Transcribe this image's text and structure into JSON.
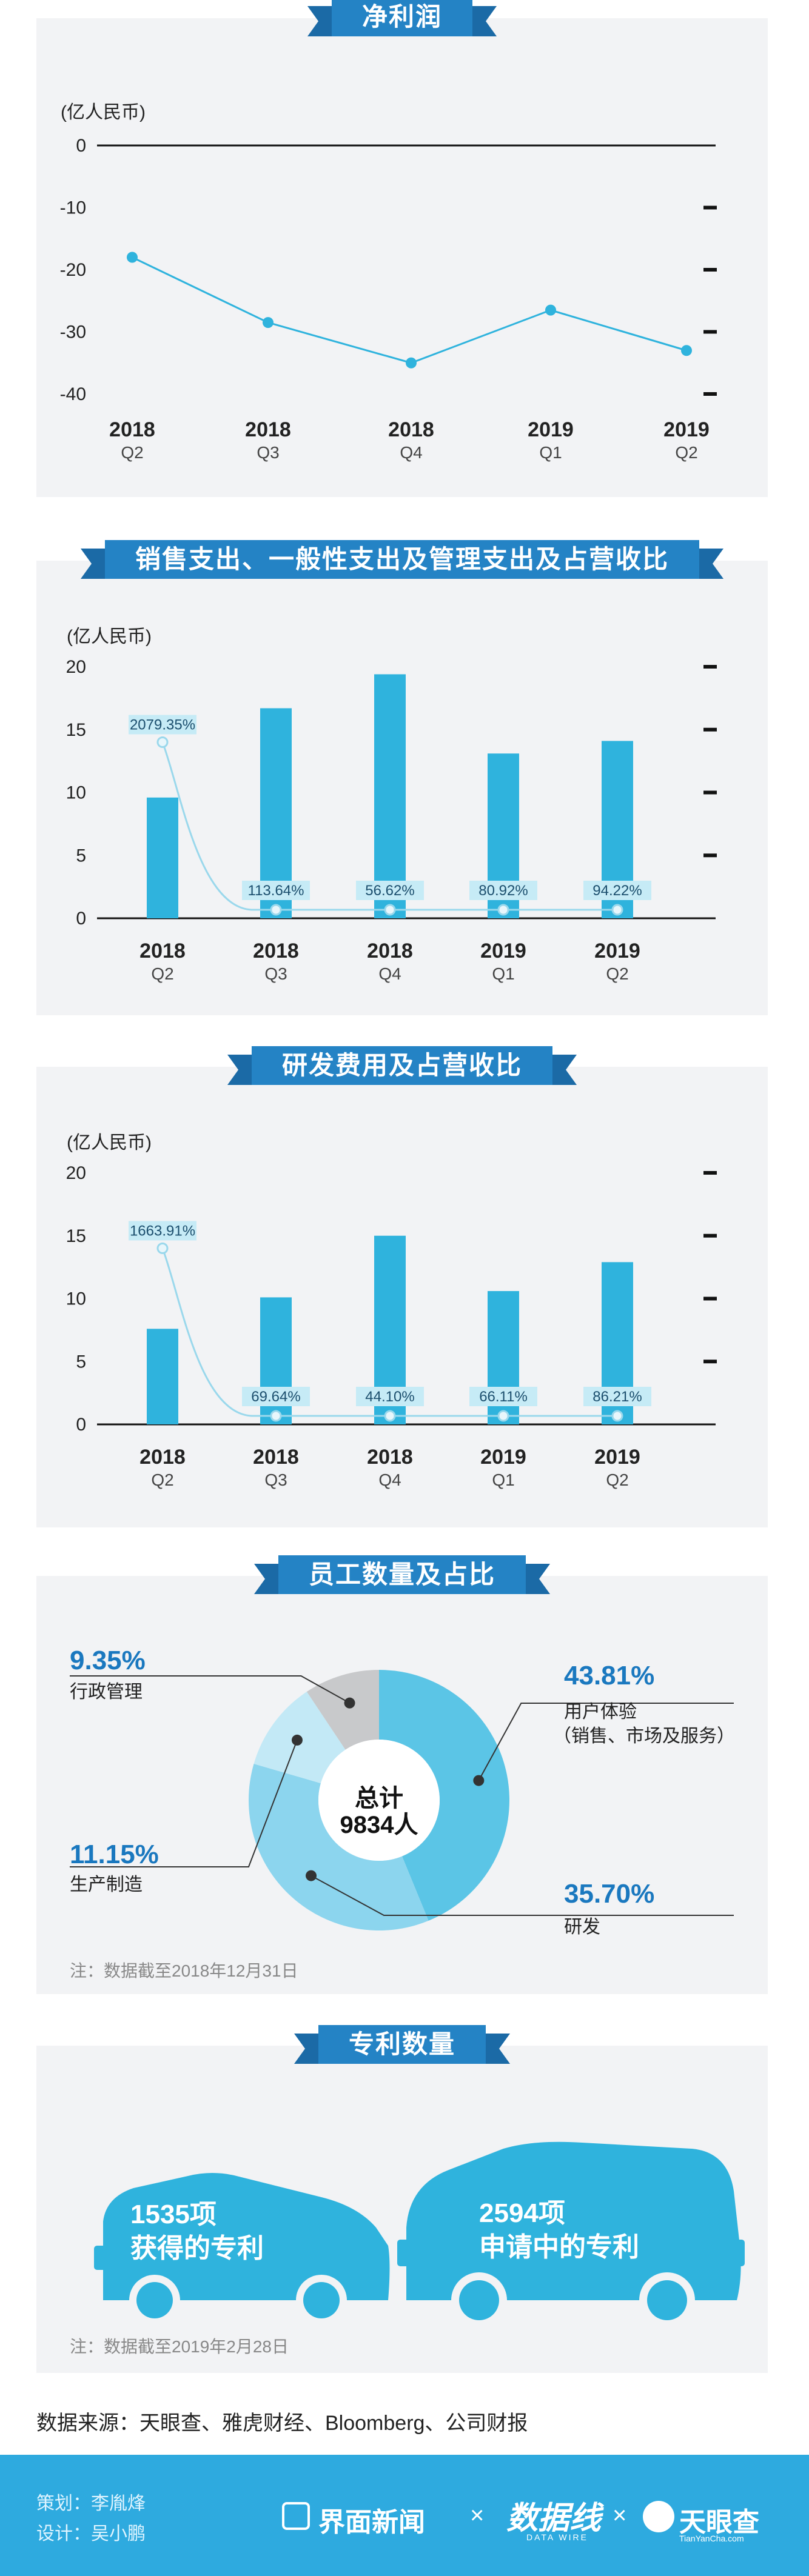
{
  "sections": {
    "net_profit": {
      "title": "净利润",
      "unit": "(亿人民币)"
    },
    "sales_expense": {
      "title": "销售支出、一般性支出及管理支出及占营收比",
      "unit": "(亿人民币)"
    },
    "rd_expense": {
      "title": "研发费用及占营收比",
      "unit": "(亿人民币)"
    },
    "employees": {
      "title": "员工数量及占比",
      "total_line1": "总计",
      "total_line2": "9834人",
      "note": "注：数据截至2018年12月31日"
    },
    "patents": {
      "title": "专利数量",
      "note": "注：数据截至2019年2月28日",
      "granted_count": "1535项",
      "granted_label": "获得的专利",
      "pending_count": "2594项",
      "pending_label": "申请中的专利"
    }
  },
  "source": "数据来源：天眼查、雅虎财经、Bloomberg、公司财报",
  "footer": {
    "planner": "策划：李胤烽",
    "designer": "设计：吴小鹏",
    "logo1": "界面新闻",
    "times": "×",
    "logo2": "数据线",
    "logo2_sub": "DATA WIRE",
    "logo3": "天眼查",
    "logo3_sub": "TianYanCha.com"
  },
  "colors": {
    "accent": "#2483c5",
    "bar": "#2fb3dd",
    "line": "#9ad8ec",
    "footer": "#2eaadf"
  },
  "chart_data": [
    {
      "type": "line",
      "title": "净利润",
      "ylabel": "(亿人民币)",
      "categories": [
        "2018\nQ2",
        "2018\nQ3",
        "2018\nQ4",
        "2019\nQ1",
        "2019\nQ2"
      ],
      "category_year": [
        "2018",
        "2018",
        "2018",
        "2019",
        "2019"
      ],
      "category_quarter": [
        "Q2",
        "Q3",
        "Q4",
        "Q1",
        "Q2"
      ],
      "values": [
        -18,
        -28.5,
        -35,
        -26.5,
        -33
      ],
      "ylim": [
        -40,
        0
      ],
      "yticks": [
        "0",
        "-10",
        "-20",
        "-30",
        "-40"
      ],
      "ytick_values": [
        0,
        -10,
        -20,
        -30,
        -40
      ]
    },
    {
      "type": "bar",
      "title": "销售支出、一般性支出及管理支出及占营收比",
      "ylabel": "(亿人民币)",
      "category_year": [
        "2018",
        "2018",
        "2018",
        "2019",
        "2019"
      ],
      "category_quarter": [
        "Q2",
        "Q3",
        "Q4",
        "Q1",
        "Q2"
      ],
      "values": [
        9.6,
        16.7,
        19.4,
        13.1,
        14.1
      ],
      "ratio_labels": [
        "2079.35%",
        "113.64%",
        "56.62%",
        "80.92%",
        "94.22%"
      ],
      "ratio_values": [
        2079.35,
        113.64,
        56.62,
        80.92,
        94.22
      ],
      "ylim": [
        0,
        20
      ],
      "yticks": [
        "20",
        "15",
        "10",
        "5",
        "0"
      ],
      "ytick_values": [
        20,
        15,
        10,
        5,
        0
      ]
    },
    {
      "type": "bar",
      "title": "研发费用及占营收比",
      "ylabel": "(亿人民币)",
      "category_year": [
        "2018",
        "2018",
        "2018",
        "2019",
        "2019"
      ],
      "category_quarter": [
        "Q2",
        "Q3",
        "Q4",
        "Q1",
        "Q2"
      ],
      "values": [
        7.6,
        10.1,
        15.0,
        10.6,
        12.9
      ],
      "ratio_labels": [
        "1663.91%",
        "69.64%",
        "44.10%",
        "66.11%",
        "86.21%"
      ],
      "ratio_values": [
        1663.91,
        69.64,
        44.1,
        66.11,
        86.21
      ],
      "ylim": [
        0,
        20
      ],
      "yticks": [
        "20",
        "15",
        "10",
        "5",
        "0"
      ],
      "ytick_values": [
        20,
        15,
        10,
        5,
        0
      ]
    },
    {
      "type": "pie",
      "title": "员工数量及占比",
      "slices": [
        {
          "label": "用户体验",
          "label2": "（销售、市场及服务）",
          "pct_label": "43.81%",
          "value": 43.81,
          "color": "#5bc5e6"
        },
        {
          "label": "研发",
          "label2": "",
          "pct_label": "35.70%",
          "value": 35.7,
          "color": "#8cd5ee"
        },
        {
          "label": "生产制造",
          "label2": "",
          "pct_label": "11.15%",
          "value": 11.15,
          "color": "#c3e9f6"
        },
        {
          "label": "行政管理",
          "label2": "",
          "pct_label": "9.35%",
          "value": 9.35,
          "color": "#c8c9cb"
        }
      ]
    }
  ]
}
